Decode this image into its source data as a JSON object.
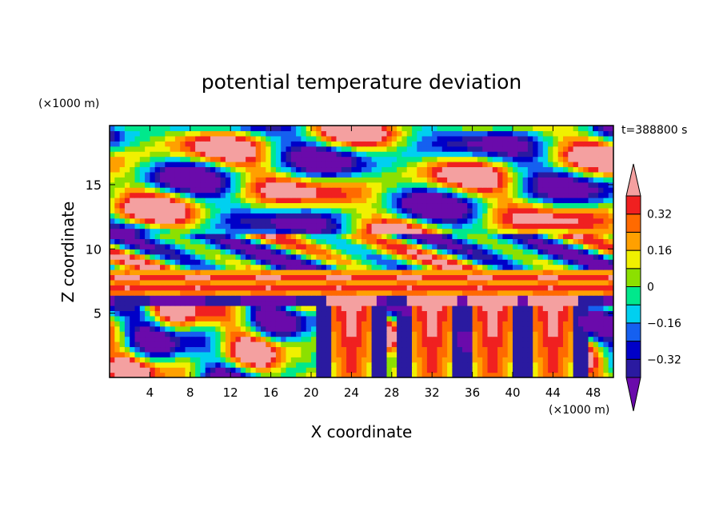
{
  "chart_data": {
    "type": "heatmap",
    "title": "potential temperature deviation",
    "xlabel": "X coordinate",
    "ylabel": "Z coordinate",
    "x_unit": "(×1000 m)",
    "y_unit": "(×1000 m)",
    "time_label": "t=388800 s",
    "xlim": [
      0,
      50
    ],
    "ylim": [
      0,
      19.6
    ],
    "x_ticks": [
      4,
      8,
      12,
      16,
      20,
      24,
      28,
      32,
      36,
      40,
      44,
      48
    ],
    "y_ticks": [
      5,
      10,
      15
    ],
    "colorbar": {
      "levels": [
        -0.4,
        -0.32,
        -0.24,
        -0.16,
        -0.08,
        0,
        0.08,
        0.16,
        0.24,
        0.32,
        0.4
      ],
      "labeled_ticks": [
        -0.32,
        -0.16,
        0,
        0.16,
        0.32
      ],
      "colors": [
        "#6a0aab",
        "#2a1aa0",
        "#0000c8",
        "#1560f0",
        "#00d0f0",
        "#00e88c",
        "#8ce000",
        "#f0f000",
        "#ffa000",
        "#ff6a00",
        "#f02020",
        "#f4a0a0"
      ],
      "extend": "both"
    },
    "regions": {
      "upper_band_z": [
        11,
        19.6
      ],
      "inversion_layer_z": [
        6.2,
        8.2
      ],
      "lower_turbulent_z": [
        0,
        5.5
      ],
      "plumes_x": [
        24,
        32,
        38,
        44
      ]
    }
  }
}
